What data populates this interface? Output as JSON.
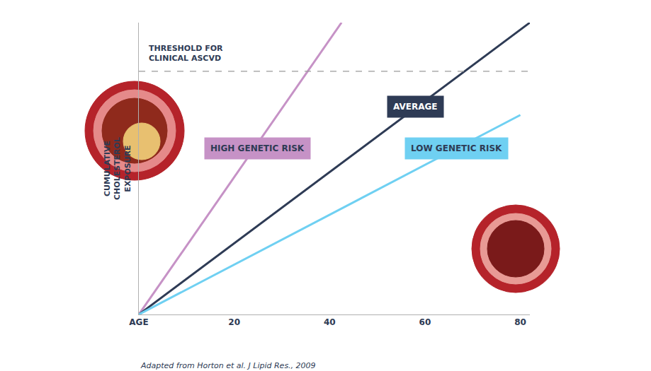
{
  "chart_data": {
    "type": "line",
    "y_label": [
      "CUMULATIVE",
      "CHOLESTEROL",
      "EXPOSURE"
    ],
    "xlim": [
      0,
      82
    ],
    "ylim": [
      0,
      120
    ],
    "xticks": [
      {
        "value": 0,
        "label": "AGE"
      },
      20,
      40,
      60,
      80
    ],
    "yticks": [],
    "tick_labels": "x",
    "grid": false,
    "series": [
      {
        "name": "HIGH GENETIC RISK",
        "color": "#c692c6",
        "x": [
          0,
          42.5
        ],
        "values": [
          0,
          120
        ]
      },
      {
        "name": "AVERAGE",
        "color": "#2e3b55",
        "x": [
          0,
          82
        ],
        "values": [
          0,
          120
        ]
      },
      {
        "name": "LOW GENETIC RISK",
        "color": "#6fd0f2",
        "x": [
          0,
          80
        ],
        "values": [
          0,
          82
        ]
      }
    ],
    "threshold": {
      "value": 100,
      "label": [
        "THRESHOLD FOR",
        "CLINICAL ASCVD"
      ]
    },
    "source": "Adapted from Horton et al. J Lipid Res., 2009"
  }
}
